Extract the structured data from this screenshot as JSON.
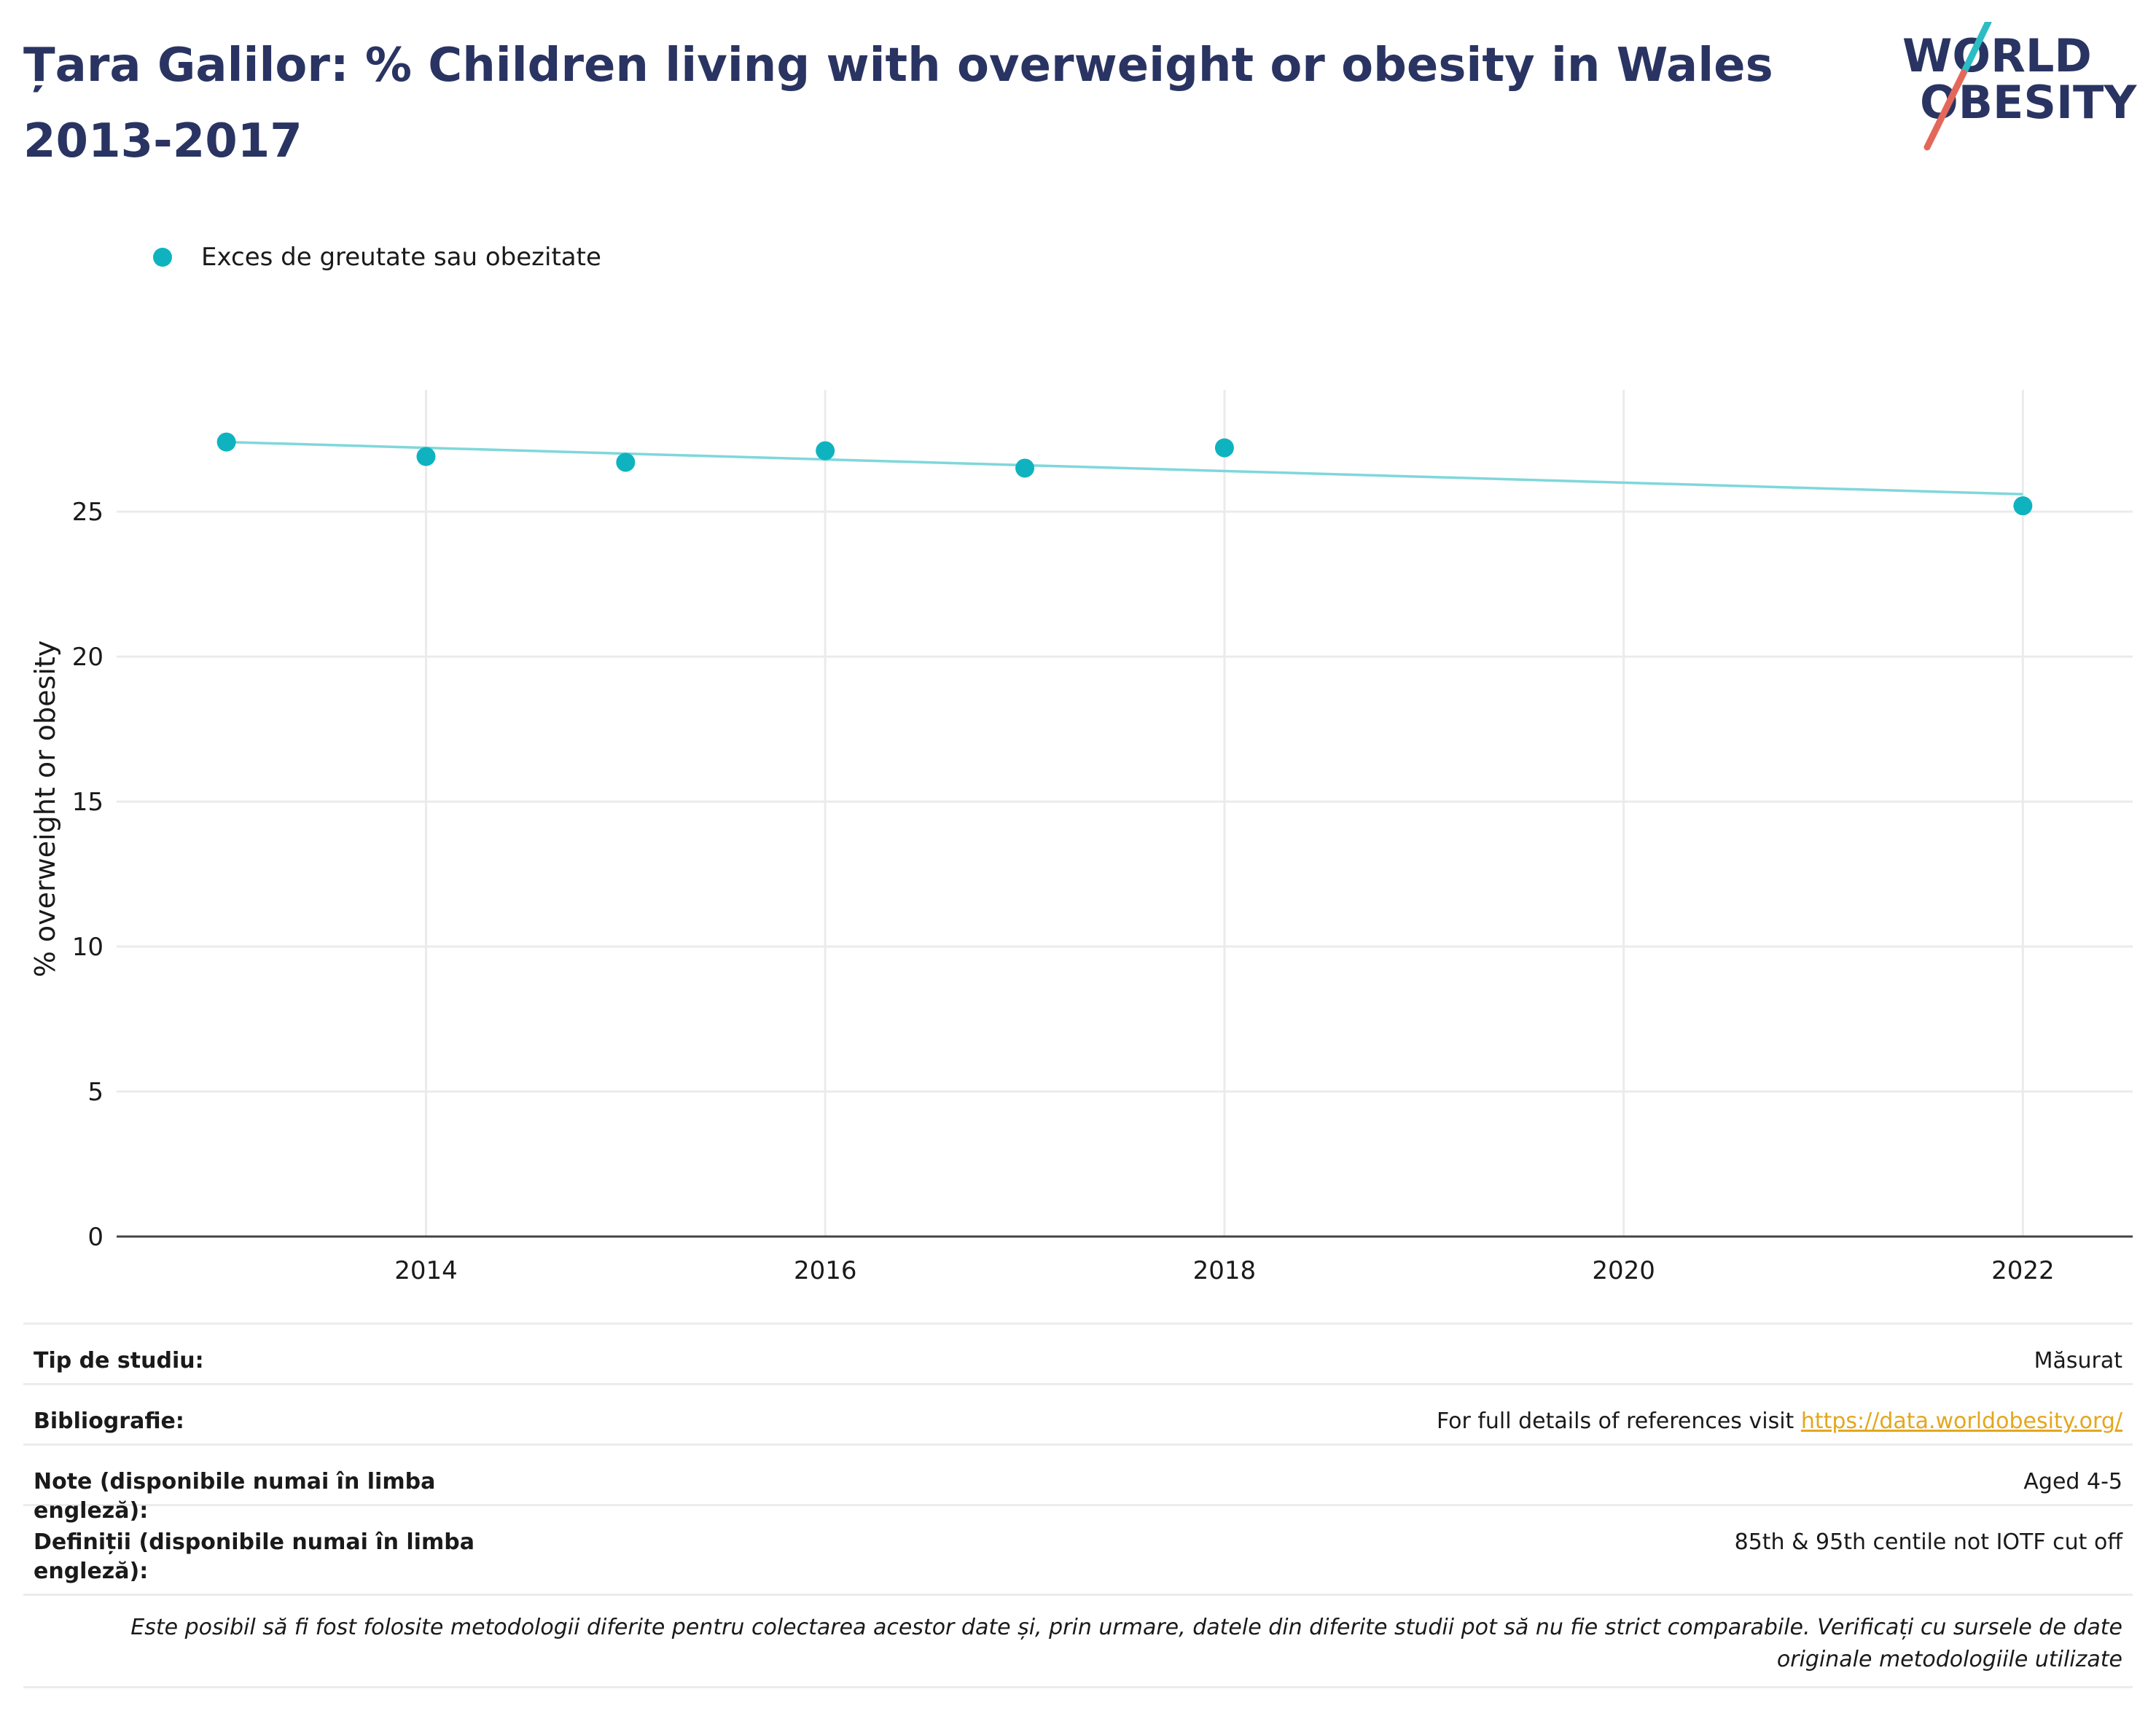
{
  "title_line1": "Țara Galilor: % Children living with overweight or obesity in Wales",
  "title_line2": "2013-2017",
  "logo": {
    "line1": "WORLD",
    "line2": "OBESITY",
    "accent_teal": "#2bbcc4",
    "accent_red": "#e4685a",
    "text_color": "#2a3462"
  },
  "chart_data": {
    "type": "scatter",
    "title": "Țara Galilor: % Children living with overweight or obesity in Wales 2013-2017",
    "xlabel": "",
    "ylabel": "% overweight or obesity",
    "xlim": [
      2012.45,
      2022.55
    ],
    "ylim": [
      0,
      29.2
    ],
    "xticks": [
      2014,
      2016,
      2018,
      2020,
      2022
    ],
    "yticks": [
      0,
      5,
      10,
      15,
      20,
      25
    ],
    "grid": true,
    "legend_position": "top-left",
    "series": [
      {
        "name": "Exces de greutate sau obezitate",
        "color": "#0fb3bf",
        "x": [
          2013,
          2014,
          2015,
          2016,
          2017,
          2018,
          2022
        ],
        "y": [
          27.4,
          26.9,
          26.7,
          27.1,
          26.5,
          27.2,
          25.2
        ]
      }
    ],
    "trendline": {
      "color": "#7fd7db",
      "x": [
        2013,
        2022
      ],
      "y": [
        27.4,
        25.6
      ]
    }
  },
  "metadata": [
    {
      "key": "Tip de studiu:",
      "value": "Măsurat"
    },
    {
      "key": "Bibliografie:",
      "value": "For full details of references visit ",
      "link": "https://data.worldobesity.org/"
    },
    {
      "key": "Note (disponibile numai în limba engleză):",
      "value": "Aged 4-5"
    },
    {
      "key": "Definiții (disponibile numai în limba engleză):",
      "value": "85th & 95th centile not IOTF cut off"
    }
  ],
  "disclaimer_line1": "Este posibil să fi fost folosite metodologii diferite pentru colectarea acestor date și, prin urmare, datele din diferite studii pot să nu fie strict comparabile. Verificați cu sursele de date",
  "disclaimer_line2": "originale metodologiile utilizate"
}
